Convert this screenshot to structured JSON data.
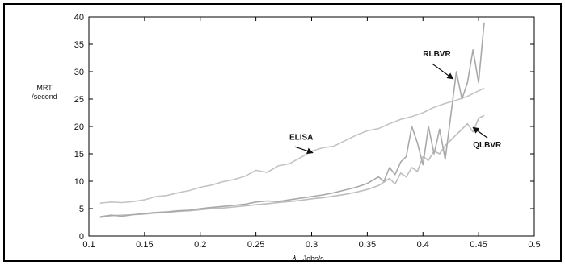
{
  "chart_data": {
    "type": "line",
    "title": "",
    "xlabel_symbol": "λ",
    "xlabel_subscript": "i",
    "xlabel": "Jobs/s",
    "ylabel": [
      "MRT",
      "/second"
    ],
    "xlim": [
      0.1,
      0.5
    ],
    "ylim": [
      0,
      40
    ],
    "xticks": [
      0.1,
      0.15,
      0.2,
      0.25,
      0.3,
      0.35,
      0.4,
      0.45,
      0.5
    ],
    "xtick_labels": [
      "0.1",
      "0.15",
      "0.2",
      "0.25",
      "0.3",
      "0.35",
      "0.4",
      "0.45",
      "0.5"
    ],
    "yticks": [
      0,
      5,
      10,
      15,
      20,
      25,
      30,
      35,
      40
    ],
    "ytick_labels": [
      "0",
      "5",
      "10",
      "15",
      "20",
      "25",
      "30",
      "35",
      "40"
    ],
    "grid": false,
    "series": [
      {
        "name": "ELISA",
        "color": "#c4c4c4",
        "x": [
          0.11,
          0.12,
          0.13,
          0.14,
          0.15,
          0.16,
          0.17,
          0.18,
          0.19,
          0.2,
          0.21,
          0.22,
          0.23,
          0.24,
          0.25,
          0.26,
          0.27,
          0.28,
          0.29,
          0.3,
          0.31,
          0.32,
          0.33,
          0.34,
          0.35,
          0.36,
          0.37,
          0.38,
          0.39,
          0.4,
          0.41,
          0.42,
          0.43,
          0.44,
          0.45,
          0.455
        ],
        "y": [
          6,
          6.2,
          6.1,
          6.3,
          6.6,
          7.2,
          7.4,
          7.9,
          8.3,
          8.9,
          9.3,
          9.9,
          10.3,
          10.9,
          12,
          11.6,
          12.8,
          13.2,
          14.3,
          15.5,
          16.1,
          16.4,
          17.4,
          18.4,
          19.2,
          19.6,
          20.5,
          21.3,
          21.8,
          22.5,
          23.5,
          24.2,
          24.8,
          25.5,
          26.5,
          27
        ]
      },
      {
        "name": "QLBVR",
        "color": "#bdbdbd",
        "x": [
          0.11,
          0.12,
          0.13,
          0.14,
          0.15,
          0.16,
          0.17,
          0.18,
          0.19,
          0.2,
          0.21,
          0.22,
          0.23,
          0.24,
          0.25,
          0.26,
          0.27,
          0.28,
          0.29,
          0.3,
          0.31,
          0.32,
          0.33,
          0.34,
          0.35,
          0.36,
          0.37,
          0.375,
          0.38,
          0.385,
          0.39,
          0.395,
          0.4,
          0.405,
          0.41,
          0.415,
          0.42,
          0.425,
          0.43,
          0.435,
          0.44,
          0.445,
          0.45,
          0.455
        ],
        "y": [
          3.4,
          3.7,
          3.8,
          3.9,
          4,
          4.2,
          4.3,
          4.5,
          4.6,
          4.8,
          5,
          5.1,
          5.3,
          5.5,
          5.7,
          5.9,
          6.1,
          6.3,
          6.5,
          6.8,
          7,
          7.3,
          7.6,
          8,
          8.5,
          9.2,
          10.5,
          9.5,
          11.5,
          10.8,
          12.5,
          11.8,
          14.5,
          13.8,
          15.5,
          15,
          16.5,
          17.5,
          18.5,
          19.5,
          20.5,
          19,
          21.5,
          22
        ]
      },
      {
        "name": "RLBVR",
        "color": "#a9a9a9",
        "x": [
          0.11,
          0.12,
          0.13,
          0.14,
          0.15,
          0.16,
          0.17,
          0.18,
          0.19,
          0.2,
          0.21,
          0.22,
          0.23,
          0.24,
          0.25,
          0.26,
          0.27,
          0.28,
          0.29,
          0.3,
          0.31,
          0.32,
          0.33,
          0.34,
          0.35,
          0.36,
          0.365,
          0.37,
          0.375,
          0.38,
          0.385,
          0.39,
          0.395,
          0.4,
          0.405,
          0.41,
          0.415,
          0.42,
          0.425,
          0.43,
          0.435,
          0.44,
          0.445,
          0.45,
          0.455
        ],
        "y": [
          3.5,
          3.8,
          3.6,
          3.9,
          4.1,
          4.3,
          4.4,
          4.6,
          4.7,
          5,
          5.2,
          5.4,
          5.6,
          5.8,
          6.2,
          6.4,
          6.3,
          6.6,
          6.9,
          7.2,
          7.5,
          7.9,
          8.4,
          8.9,
          9.6,
          10.8,
          10,
          12.5,
          11.2,
          13.5,
          14.5,
          20,
          17,
          13,
          20,
          15,
          19.5,
          14,
          22,
          30,
          25,
          28,
          34,
          28,
          39
        ]
      }
    ],
    "annotations": [
      {
        "text": "ELISA",
        "x": 0.28,
        "y": 17.6,
        "arrow_from": [
          0.285,
          16.3
        ],
        "arrow_to": [
          0.301,
          15.2
        ]
      },
      {
        "text": "RLBVR",
        "x": 0.4,
        "y": 32.8,
        "arrow_from": [
          0.408,
          31.5
        ],
        "arrow_to": [
          0.427,
          28.7
        ]
      },
      {
        "text": "QLBVR",
        "x": 0.445,
        "y": 16.2,
        "arrow_from": [
          0.458,
          17.9
        ],
        "arrow_to": [
          0.445,
          19.8
        ]
      }
    ]
  }
}
